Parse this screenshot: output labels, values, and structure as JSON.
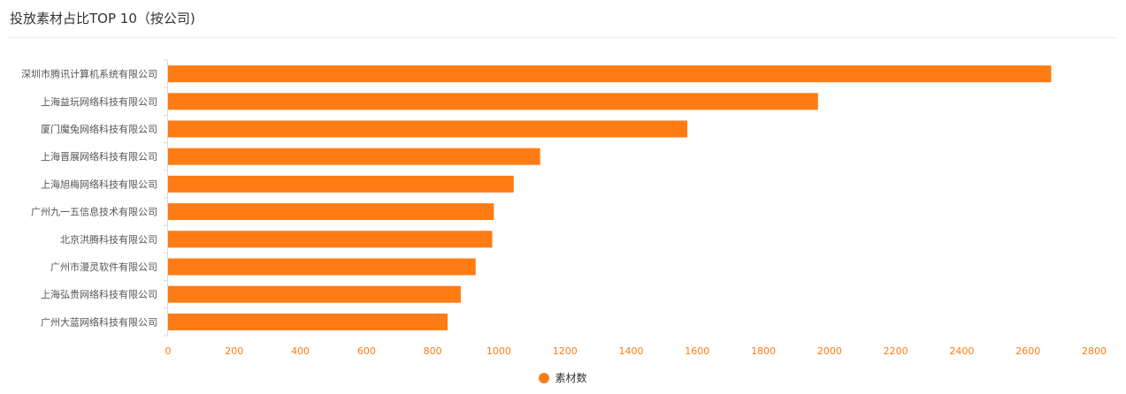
{
  "panel": {
    "title": "投放素材占比TOP 10（按公司)"
  },
  "colors": {
    "bar": "#ff7b14",
    "x_tick_text": "#ff7b14",
    "y_tick_text": "#555555",
    "axis_line": "#d9d9d9"
  },
  "chart_data": {
    "type": "bar",
    "orientation": "horizontal",
    "categories": [
      "深圳市腾讯计算机系统有限公司",
      "上海益玩网络科技有限公司",
      "厦门魔兔网络科技有限公司",
      "上海晋展网络科技有限公司",
      "上海旭梅网络科技有限公司",
      "广州九一五信息技术有限公司",
      "北京洪腾科技有限公司",
      "广州市漫灵软件有限公司",
      "上海弘贵网络科技有限公司",
      "广州大蓝网络科技有限公司"
    ],
    "series": [
      {
        "name": "素材数",
        "values": [
          2670,
          1965,
          1570,
          1125,
          1045,
          985,
          980,
          930,
          885,
          845
        ]
      }
    ],
    "xlim": [
      0,
      2800
    ],
    "x_ticks": [
      "0",
      "200",
      "400",
      "600",
      "800",
      "1000",
      "1200",
      "1400",
      "1600",
      "1800",
      "2000",
      "2200",
      "2400",
      "2600",
      "2800"
    ],
    "grid": false,
    "legend_position": "bottom-center"
  }
}
